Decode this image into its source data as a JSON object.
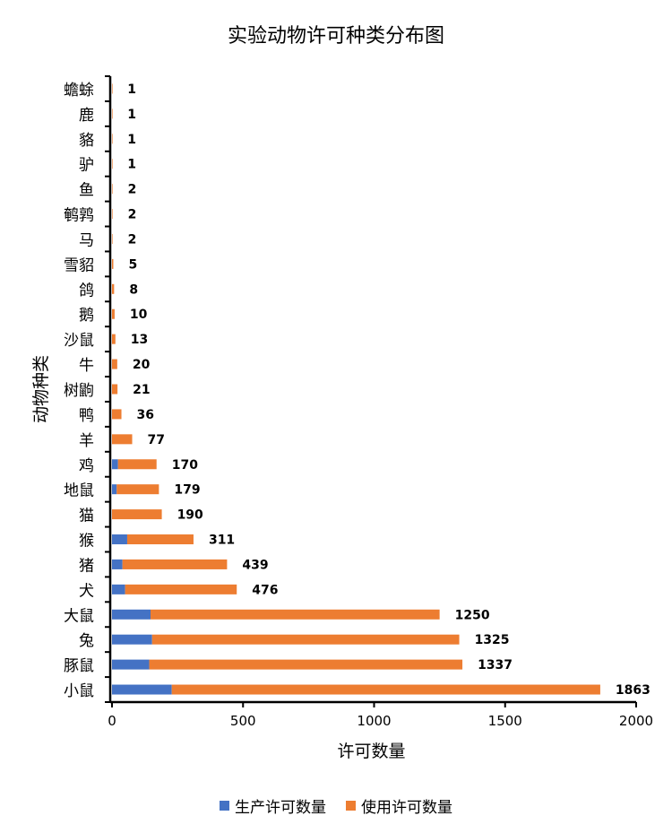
{
  "chart_data": {
    "type": "bar",
    "orientation": "horizontal",
    "stacked": true,
    "title": "实验动物许可种类分布图",
    "xlabel": "许可数量",
    "ylabel": "动物种类",
    "xlim": [
      0,
      2000
    ],
    "xticks": [
      "0",
      "500",
      "1000",
      "1500",
      "2000"
    ],
    "grid": false,
    "legend": "bottom",
    "categories": [
      "小鼠",
      "豚鼠",
      "兔",
      "大鼠",
      "犬",
      "猪",
      "猴",
      "猫",
      "地鼠",
      "鸡",
      "羊",
      "鸭",
      "树鼩",
      "牛",
      "沙鼠",
      "鹅",
      "鸽",
      "雪貂",
      "马",
      "鹌鹑",
      "鱼",
      "驴",
      "貉",
      "鹿",
      "蟾蜍"
    ],
    "series": [
      {
        "name": "生产许可数量",
        "color": "#4472C4",
        "values": [
          228,
          142,
          153,
          147,
          50,
          40,
          58,
          0,
          18,
          23,
          0,
          0,
          0,
          0,
          0,
          0,
          0,
          0,
          0,
          0,
          0,
          0,
          0,
          0,
          0
        ]
      },
      {
        "name": "使用许可数量",
        "color": "#ED7D31",
        "values": [
          1635,
          1195,
          1172,
          1103,
          426,
          399,
          253,
          190,
          161,
          147,
          77,
          36,
          21,
          20,
          13,
          10,
          8,
          5,
          2,
          2,
          2,
          1,
          1,
          1,
          1
        ]
      }
    ],
    "totals": [
      "1863",
      "1337",
      "1325",
      "1250",
      "476",
      "439",
      "311",
      "190",
      "179",
      "170",
      "77",
      "36",
      "21",
      "20",
      "13",
      "10",
      "8",
      "5",
      "2",
      "2",
      "2",
      "1",
      "1",
      "1",
      "1"
    ]
  }
}
